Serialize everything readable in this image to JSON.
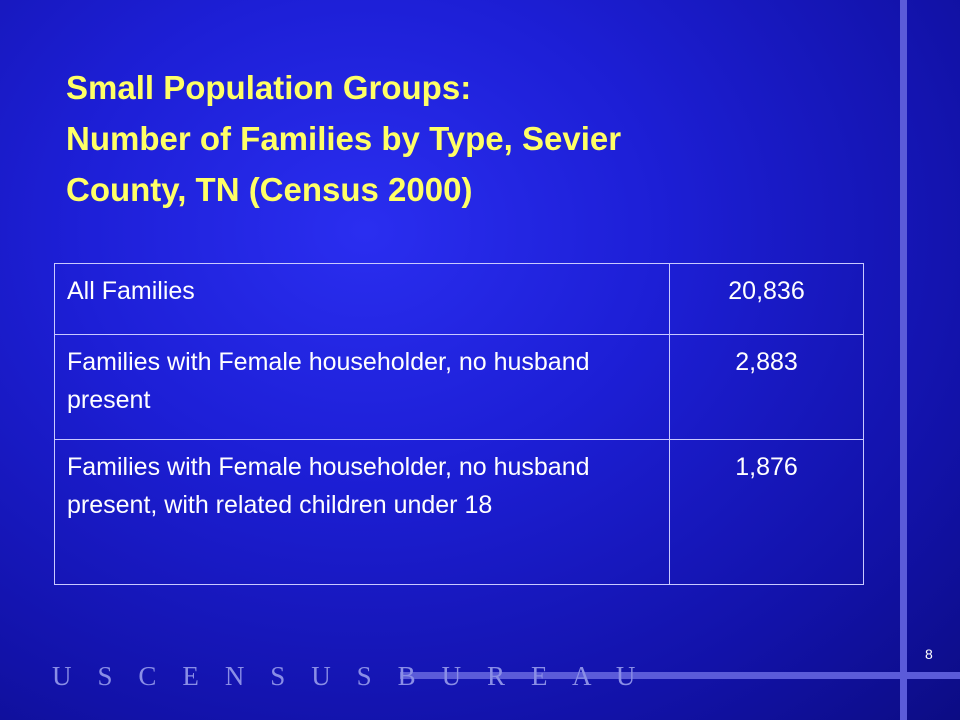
{
  "slide": {
    "title_line1": "Small Population Groups:",
    "title_line2": "Number of Families by Type, Sevier",
    "title_line3": "County, TN (Census 2000)",
    "footer_logo_text": "U S C E N S U S B U R E A U",
    "page_number": "8"
  },
  "table": {
    "rows": [
      {
        "label": "All Families",
        "value": "20,836"
      },
      {
        "label": "Families with Female householder, no husband present",
        "value": "2,883"
      },
      {
        "label": "Families with Female householder, no husband present, with related children under 18",
        "value": "1,876"
      }
    ]
  },
  "colors": {
    "background": "#1d1fd6",
    "title": "#ffff66",
    "text": "#ffffff",
    "accent_lines": "#5b5bd9"
  }
}
